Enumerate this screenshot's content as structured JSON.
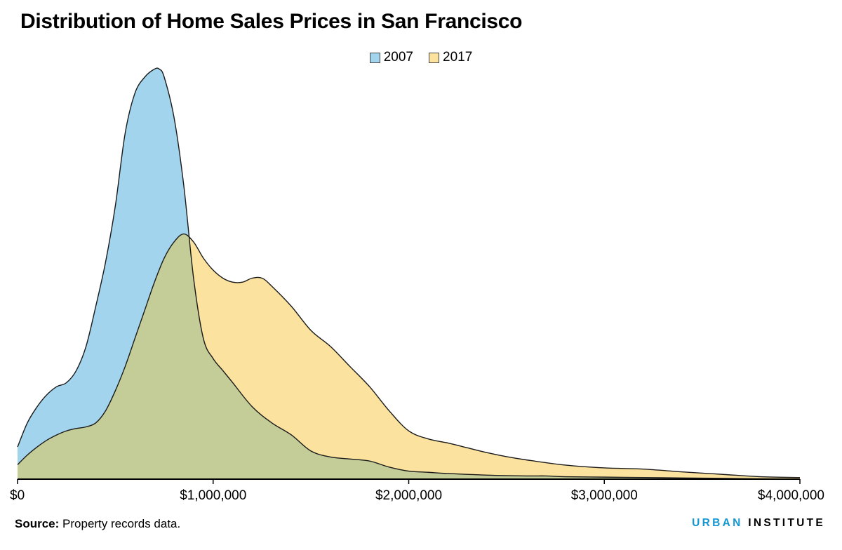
{
  "chart_title": "Distribution of Home Sales Prices in San Francisco",
  "source_label": "Source:",
  "source_text": "Property records data.",
  "logo_part1": "URBAN",
  "logo_part2": "INSTITUTE",
  "colors": {
    "series_2007": "#a3d4ee",
    "series_2017": "#fbe39f",
    "overlap": "#c4cc98",
    "outline": "#1a1a1a",
    "logo_blue": "#1696d2"
  },
  "chart_data": {
    "type": "area",
    "title": "Distribution of Home Sales Prices in San Francisco",
    "xlabel": "",
    "ylabel": "",
    "xlim": [
      0,
      4000000
    ],
    "ylim": [
      0,
      1
    ],
    "x_ticks": [
      0,
      1000000,
      2000000,
      3000000,
      4000000
    ],
    "x_tick_labels": [
      "$0",
      "$1,000,000",
      "$2,000,000",
      "$3,000,000",
      "$4,000,000"
    ],
    "y_axis_shown": false,
    "grid": false,
    "legend_position": "top-center",
    "series": [
      {
        "name": "2007",
        "x": [
          0,
          50000,
          100000,
          150000,
          200000,
          250000,
          300000,
          350000,
          400000,
          450000,
          500000,
          550000,
          600000,
          650000,
          700000,
          725000,
          750000,
          800000,
          850000,
          900000,
          950000,
          1000000,
          1050000,
          1100000,
          1200000,
          1300000,
          1400000,
          1500000,
          1600000,
          1700000,
          1800000,
          1900000,
          2000000,
          2100000,
          2200000,
          2400000,
          2600000,
          2700000,
          2800000,
          3000000,
          3200000,
          3400000,
          3600000,
          3800000,
          4000000
        ],
        "values": [
          0.08,
          0.14,
          0.18,
          0.21,
          0.23,
          0.24,
          0.27,
          0.33,
          0.43,
          0.54,
          0.68,
          0.86,
          0.96,
          1.0,
          1.02,
          1.02,
          1.0,
          0.9,
          0.73,
          0.5,
          0.35,
          0.3,
          0.27,
          0.24,
          0.18,
          0.14,
          0.11,
          0.07,
          0.055,
          0.05,
          0.045,
          0.03,
          0.02,
          0.017,
          0.014,
          0.01,
          0.008,
          0.008,
          0.006,
          0.005,
          0.004,
          0.003,
          0.002,
          0.001,
          0.0005
        ]
      },
      {
        "name": "2017",
        "x": [
          0,
          50000,
          100000,
          150000,
          200000,
          250000,
          300000,
          350000,
          400000,
          450000,
          500000,
          550000,
          600000,
          650000,
          700000,
          750000,
          800000,
          850000,
          900000,
          950000,
          1000000,
          1050000,
          1100000,
          1150000,
          1200000,
          1250000,
          1300000,
          1400000,
          1500000,
          1600000,
          1700000,
          1800000,
          1900000,
          2000000,
          2100000,
          2200000,
          2300000,
          2400000,
          2500000,
          2600000,
          2800000,
          3000000,
          3200000,
          3400000,
          3600000,
          3800000,
          4000000
        ],
        "values": [
          0.036,
          0.06,
          0.08,
          0.097,
          0.11,
          0.12,
          0.126,
          0.13,
          0.14,
          0.17,
          0.22,
          0.28,
          0.35,
          0.42,
          0.49,
          0.55,
          0.59,
          0.61,
          0.59,
          0.55,
          0.52,
          0.5,
          0.49,
          0.49,
          0.5,
          0.5,
          0.48,
          0.43,
          0.37,
          0.33,
          0.28,
          0.23,
          0.17,
          0.12,
          0.1,
          0.09,
          0.078,
          0.066,
          0.056,
          0.048,
          0.035,
          0.028,
          0.025,
          0.018,
          0.012,
          0.006,
          0.004
        ]
      }
    ]
  }
}
